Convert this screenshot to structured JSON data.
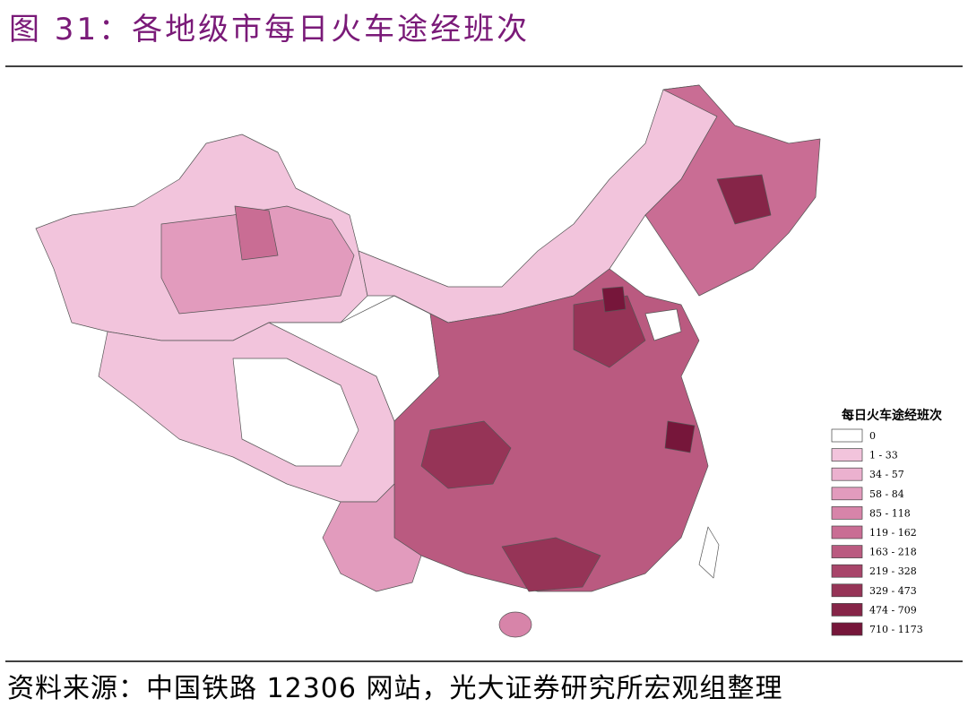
{
  "title": "图 31：各地级市每日火车途经班次",
  "legend": {
    "title": "每日火车途经班次",
    "items": [
      {
        "label": "0",
        "color": "#ffffff"
      },
      {
        "label": "1 - 33",
        "color": "#f2c4dc"
      },
      {
        "label": "34 - 57",
        "color": "#ebb1cf"
      },
      {
        "label": "58 - 84",
        "color": "#e29bbd"
      },
      {
        "label": "85 - 118",
        "color": "#d784a9"
      },
      {
        "label": "119 - 162",
        "color": "#c96d94"
      },
      {
        "label": "163 - 218",
        "color": "#ba5a80"
      },
      {
        "label": "219 - 328",
        "color": "#a8456a"
      },
      {
        "label": "329 - 473",
        "color": "#963457"
      },
      {
        "label": "474 - 709",
        "color": "#862548"
      },
      {
        "label": "710 - 1173",
        "color": "#76163a"
      }
    ]
  },
  "source": "资料来源：中国铁路 12306 网站，光大证券研究所宏观组整理"
}
